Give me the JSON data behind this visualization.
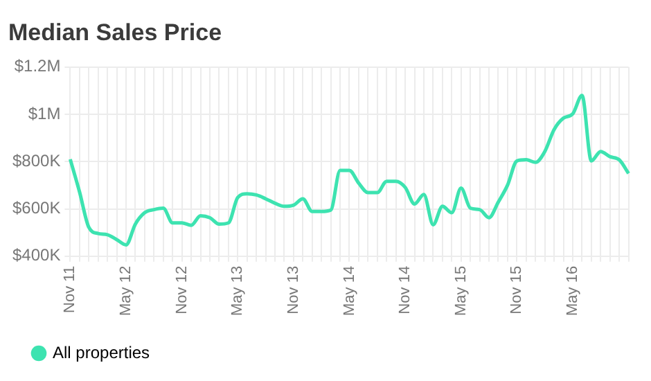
{
  "chart_data": {
    "type": "line",
    "title": "Median Sales Price",
    "categories": [
      "Nov 11",
      null,
      null,
      null,
      null,
      null,
      "May 12",
      null,
      null,
      null,
      null,
      null,
      "Nov 12",
      null,
      null,
      null,
      null,
      null,
      "May 13",
      null,
      null,
      null,
      null,
      null,
      "Nov 13",
      null,
      null,
      null,
      null,
      null,
      "May 14",
      null,
      null,
      null,
      null,
      null,
      "Nov 14",
      null,
      null,
      null,
      null,
      null,
      "May 15",
      null,
      null,
      null,
      null,
      null,
      "Nov 15",
      null,
      null,
      null,
      null,
      null,
      "May 16",
      null,
      null,
      null,
      null,
      null,
      null
    ],
    "series": [
      {
        "name": "All properties",
        "color": "#3de3b0",
        "values": [
          810000,
          672000,
          522000,
          496000,
          491000,
          470000,
          448000,
          536000,
          584000,
          597000,
          603000,
          541000,
          541000,
          531000,
          571000,
          563000,
          536000,
          541000,
          648000,
          664000,
          659000,
          643000,
          624000,
          611000,
          616000,
          643000,
          589000,
          589000,
          595000,
          763000,
          763000,
          709000,
          669000,
          669000,
          717000,
          717000,
          691000,
          621000,
          661000,
          533000,
          611000,
          584000,
          688000,
          603000,
          597000,
          563000,
          629000,
          701000,
          803000,
          808000,
          797000,
          843000,
          936000,
          984000,
          1002000,
          1080000,
          803000,
          843000,
          821000,
          808000,
          750000
        ]
      }
    ],
    "ylim": [
      400000,
      1200000
    ],
    "yticks": [
      {
        "value": 400000,
        "label": "$400K"
      },
      {
        "value": 600000,
        "label": "$600K"
      },
      {
        "value": 800000,
        "label": "$800K"
      },
      {
        "value": 1000000,
        "label": "$1M"
      },
      {
        "value": 1200000,
        "label": "$1.2M"
      }
    ],
    "grid": true,
    "legend": "bottom left",
    "marker": "none",
    "line_style": "solid"
  }
}
